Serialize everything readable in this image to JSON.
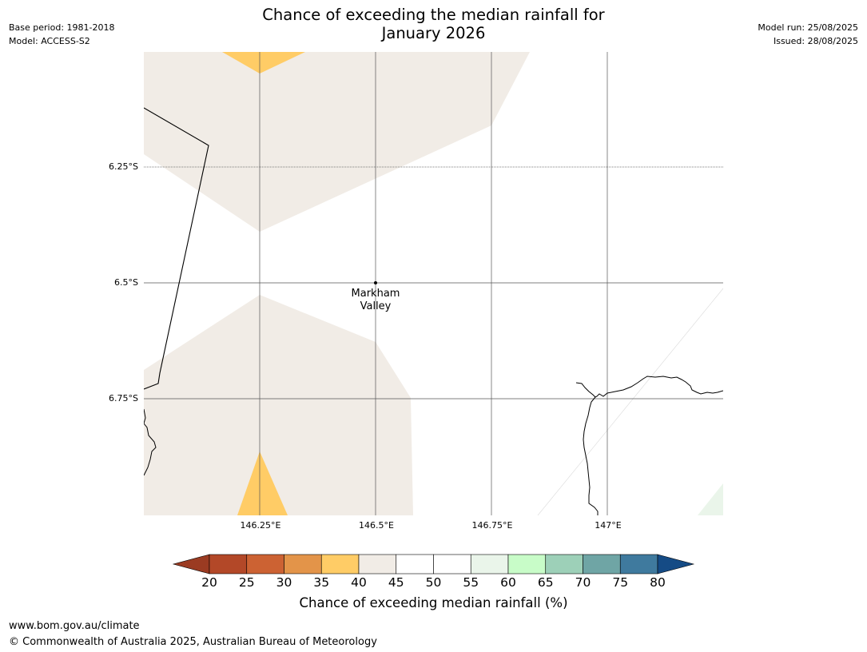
{
  "header": {
    "base_period": "Base period: 1981-2018",
    "model": "Model: ACCESS-S2",
    "model_run": "Model run: 25/08/2025",
    "issued": "Issued: 28/08/2025",
    "title_line1": "Chance of exceeding the median rainfall for",
    "title_line2": "January 2026"
  },
  "map": {
    "lat_labels": [
      "6.25°S",
      "6.5°S",
      "6.75°S"
    ],
    "lon_labels": [
      "146.25°E",
      "146.5°E",
      "146.75°E",
      "147°E"
    ],
    "place_name_line1": "Markham",
    "place_name_line2": "Valley",
    "colors": {
      "beige_40_45": "#f1ece6",
      "yellow_35_40": "#ffcc66",
      "lightgreen_55_60": "#eaf5ea",
      "gridline": "#444444",
      "coastline": "#000000"
    }
  },
  "colorbar": {
    "ticks": [
      "20",
      "25",
      "30",
      "35",
      "40",
      "45",
      "50",
      "55",
      "60",
      "65",
      "70",
      "75",
      "80"
    ],
    "under_color": "#9b3b22",
    "over_color": "#154b85",
    "colors": [
      "#b34828",
      "#cc6233",
      "#e39449",
      "#ffcc66",
      "#f1ece6",
      "#ffffff",
      "#ffffff",
      "#eaf5ea",
      "#c8fcc8",
      "#9dd0b8",
      "#6fa5a5",
      "#3f7a9e"
    ],
    "label": "Chance of exceeding median rainfall (%)"
  },
  "footer": {
    "url": "www.bom.gov.au/climate",
    "copyright": "© Commonwealth of Australia 2025, Australian Bureau of Meteorology"
  }
}
